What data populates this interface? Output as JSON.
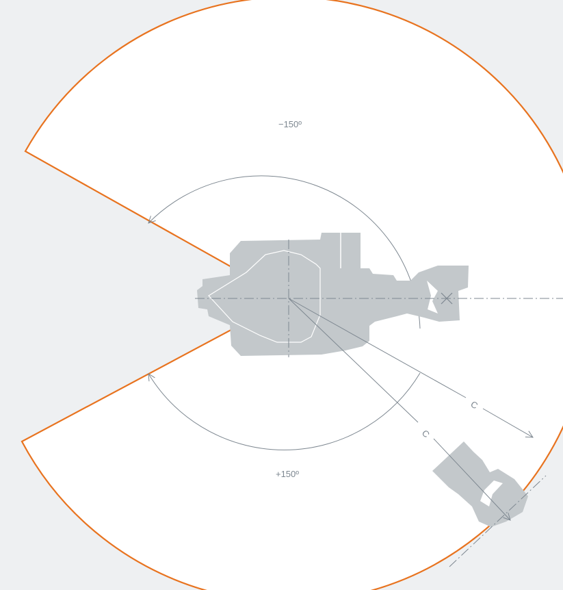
{
  "diagram": {
    "angle_negative_label": "−150º",
    "angle_positive_label": "+150º",
    "reach_label_1": "C",
    "reach_label_2": "C",
    "colors": {
      "background": "#eef0f2",
      "envelope_fill": "#ffffff",
      "envelope_outline": "#e8731f",
      "robot_body": "#c3c8cb",
      "dimension_lines": "#7d8790"
    },
    "rotation_range_degrees": [
      -150,
      150
    ]
  }
}
